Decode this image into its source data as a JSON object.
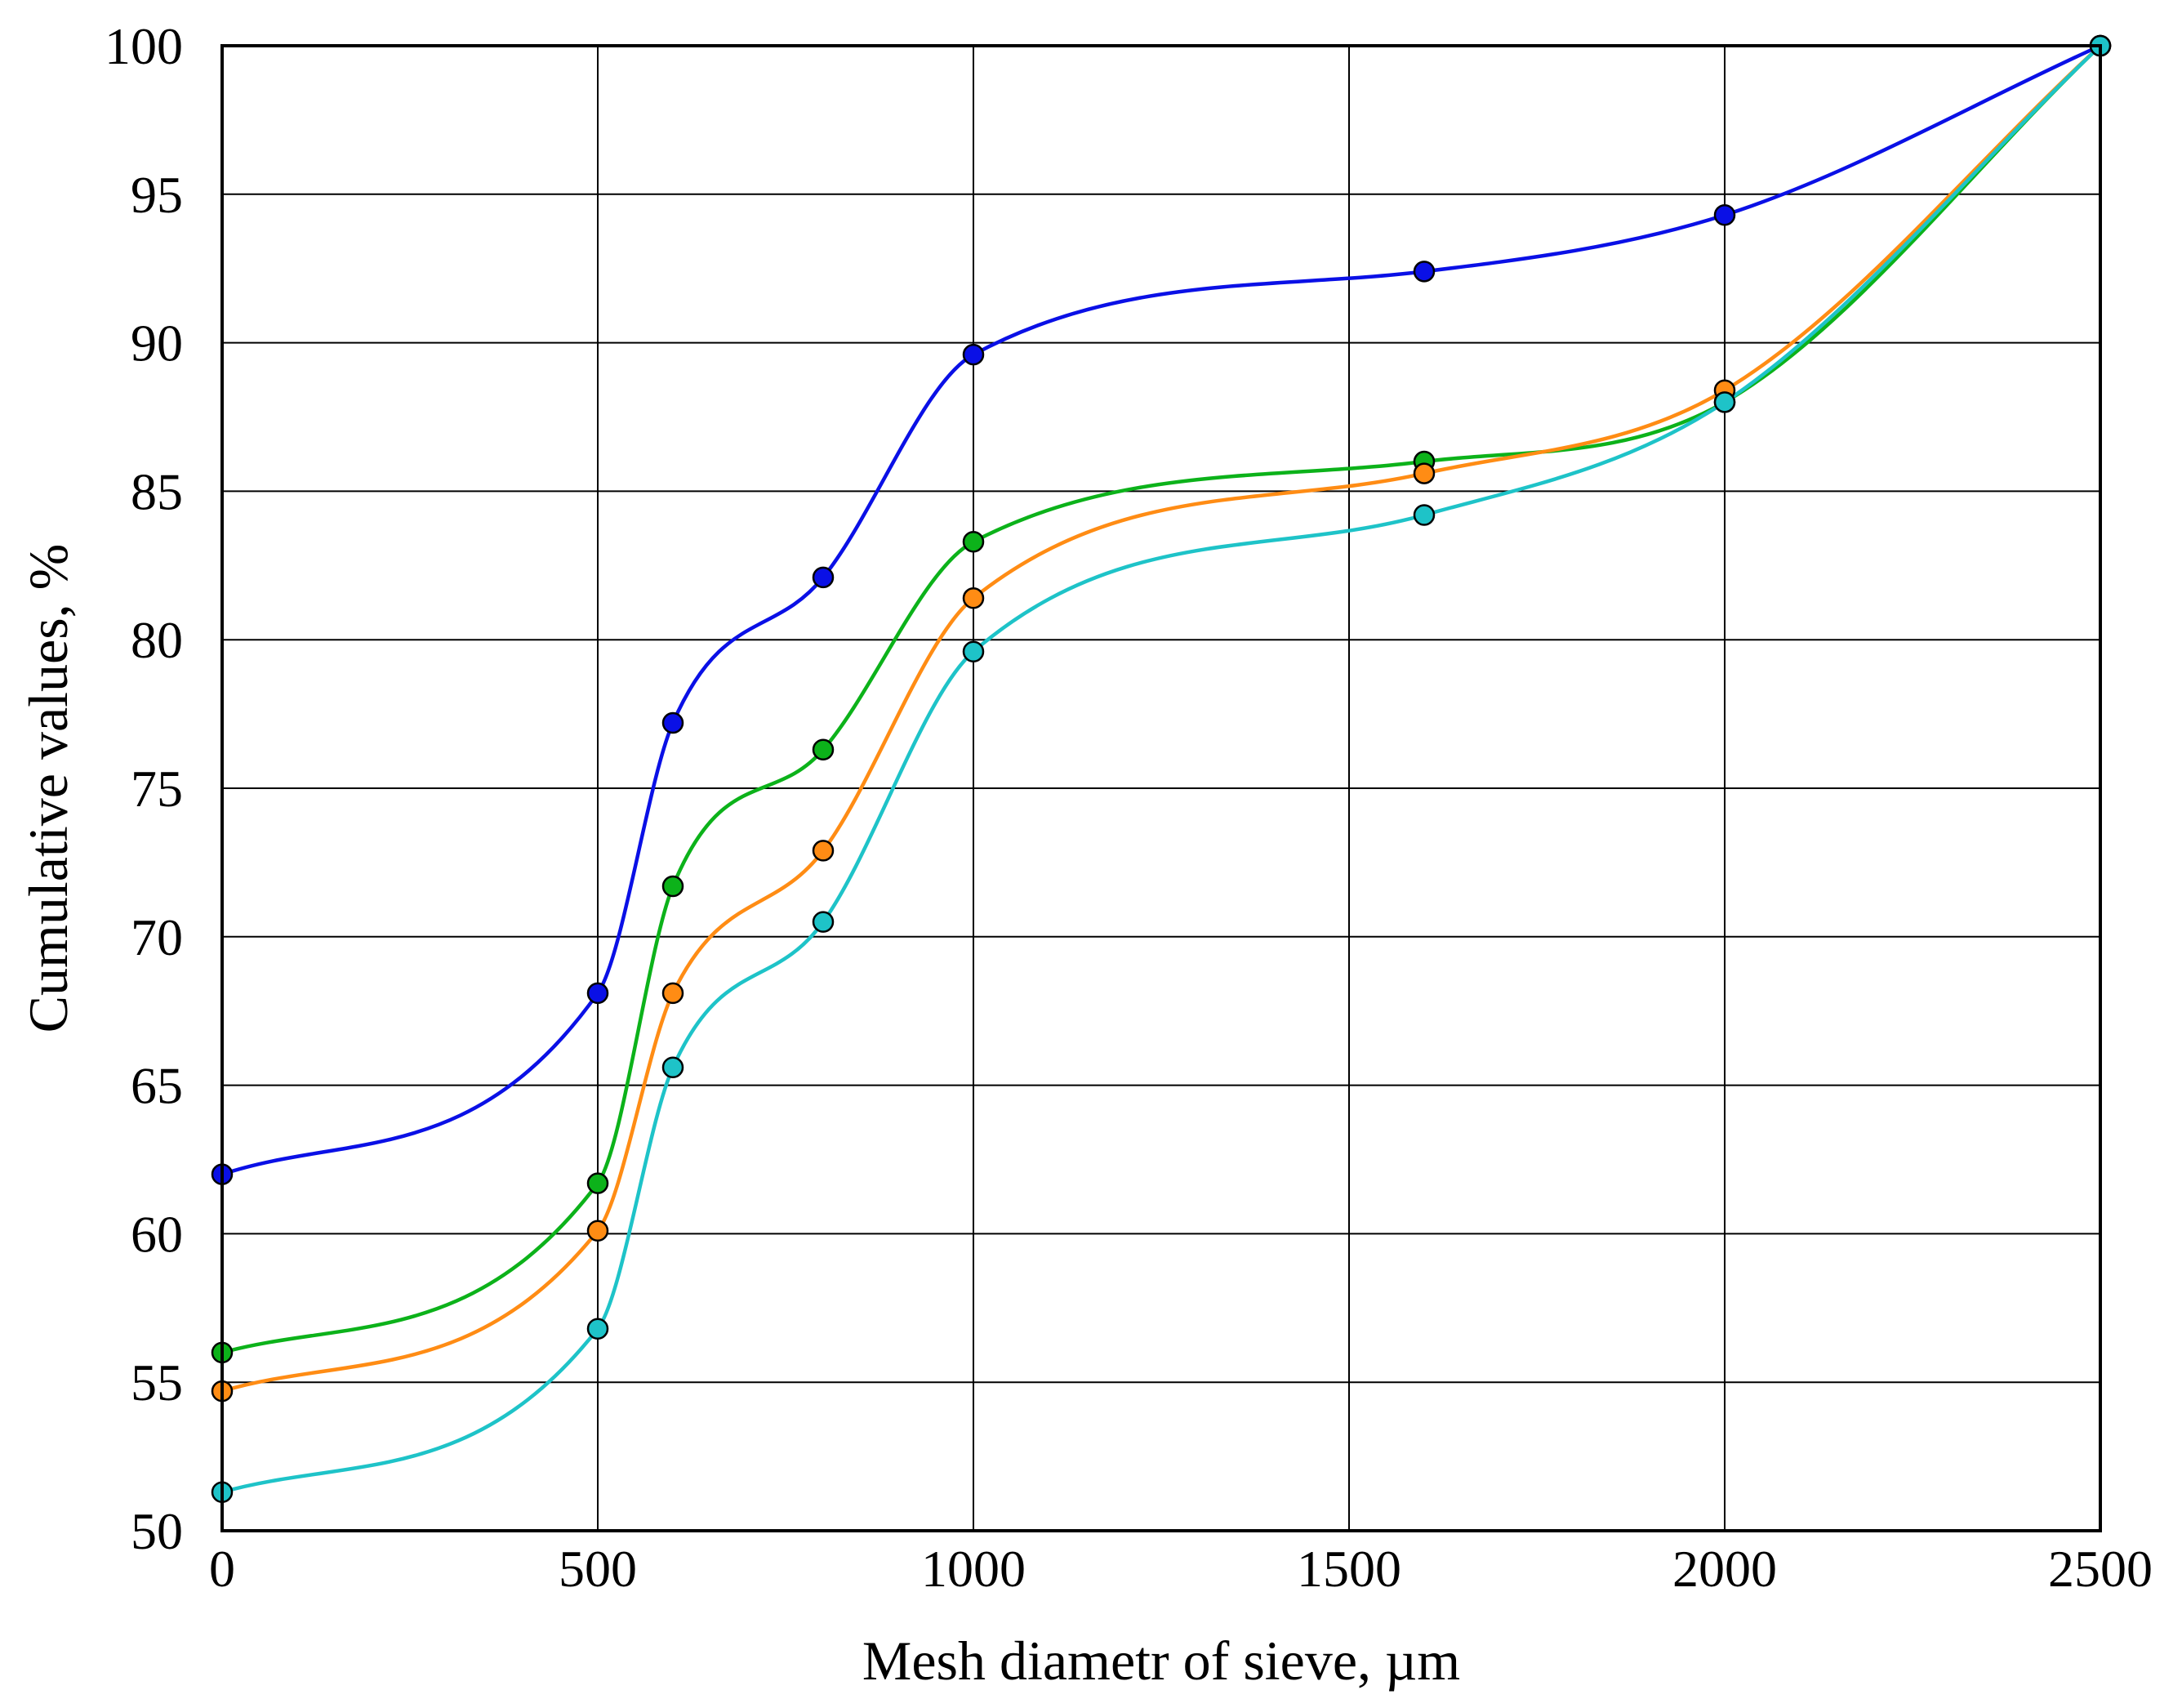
{
  "chart_data": {
    "type": "line",
    "title": "",
    "xlabel": "Mesh diametr of sieve, µm",
    "ylabel": "Cumulative values, %",
    "xlim": [
      0,
      2500
    ],
    "ylim": [
      50,
      100
    ],
    "xticks": [
      0,
      500,
      1000,
      1500,
      2000,
      2500
    ],
    "yticks": [
      50,
      55,
      60,
      65,
      70,
      75,
      80,
      85,
      90,
      95,
      100
    ],
    "xtick_labels": [
      "0",
      "500",
      "1000",
      "1500",
      "2000",
      "2500"
    ],
    "ytick_labels": [
      "50",
      "55",
      "60",
      "65",
      "70",
      "75",
      "80",
      "85",
      "90",
      "95",
      "100"
    ],
    "grid": true,
    "legend": "none",
    "x": [
      0,
      500,
      600,
      800,
      1000,
      1600,
      2000,
      2500
    ],
    "series": [
      {
        "color": "#0a10e6",
        "values": [
          62.0,
          68.1,
          77.2,
          82.1,
          89.6,
          92.4,
          94.3,
          100
        ]
      },
      {
        "color": "#0cb21a",
        "values": [
          56.0,
          61.7,
          71.7,
          76.3,
          83.3,
          86.0,
          88.0,
          100
        ]
      },
      {
        "color": "#ff8c14",
        "values": [
          54.7,
          60.1,
          68.1,
          72.9,
          81.4,
          85.6,
          88.4,
          100
        ]
      },
      {
        "color": "#1ec3c8",
        "values": [
          51.3,
          56.8,
          65.6,
          70.5,
          79.6,
          84.2,
          88.0,
          100
        ]
      }
    ]
  }
}
